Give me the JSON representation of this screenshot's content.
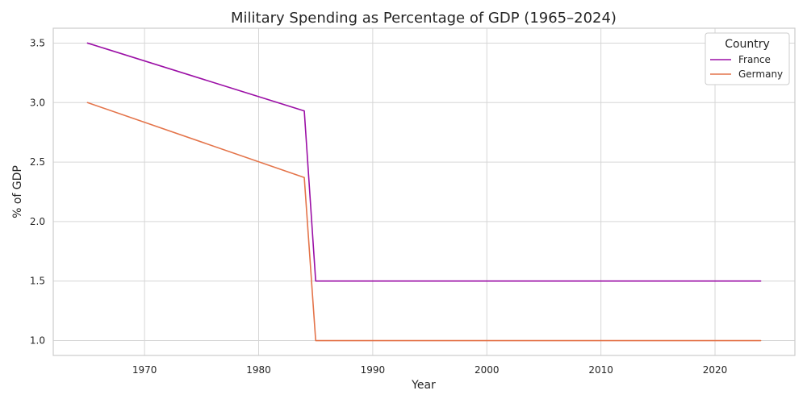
{
  "chart_data": {
    "type": "line",
    "title": "Military Spending as Percentage of GDP (1965–2024)",
    "xlabel": "Year",
    "ylabel": "% of GDP",
    "xlim": [
      1962,
      2027
    ],
    "ylim": [
      0.875,
      3.625
    ],
    "grid": true,
    "x_ticks": [
      "1970",
      "1980",
      "1990",
      "2000",
      "2010",
      "2020"
    ],
    "y_ticks": [
      "1.0",
      "1.5",
      "2.0",
      "2.5",
      "3.0",
      "3.5"
    ],
    "legend": {
      "title": "Country",
      "placement": "top-right"
    },
    "series": [
      {
        "name": "France",
        "color": "#9b0fa6",
        "x": [
          1965,
          1984,
          1985,
          2024
        ],
        "values": [
          3.5,
          2.93,
          1.5,
          1.5
        ]
      },
      {
        "name": "Germany",
        "color": "#e4744a",
        "x": [
          1965,
          1984,
          1985,
          2024
        ],
        "values": [
          3.0,
          2.37,
          1.0,
          1.0
        ]
      }
    ]
  }
}
